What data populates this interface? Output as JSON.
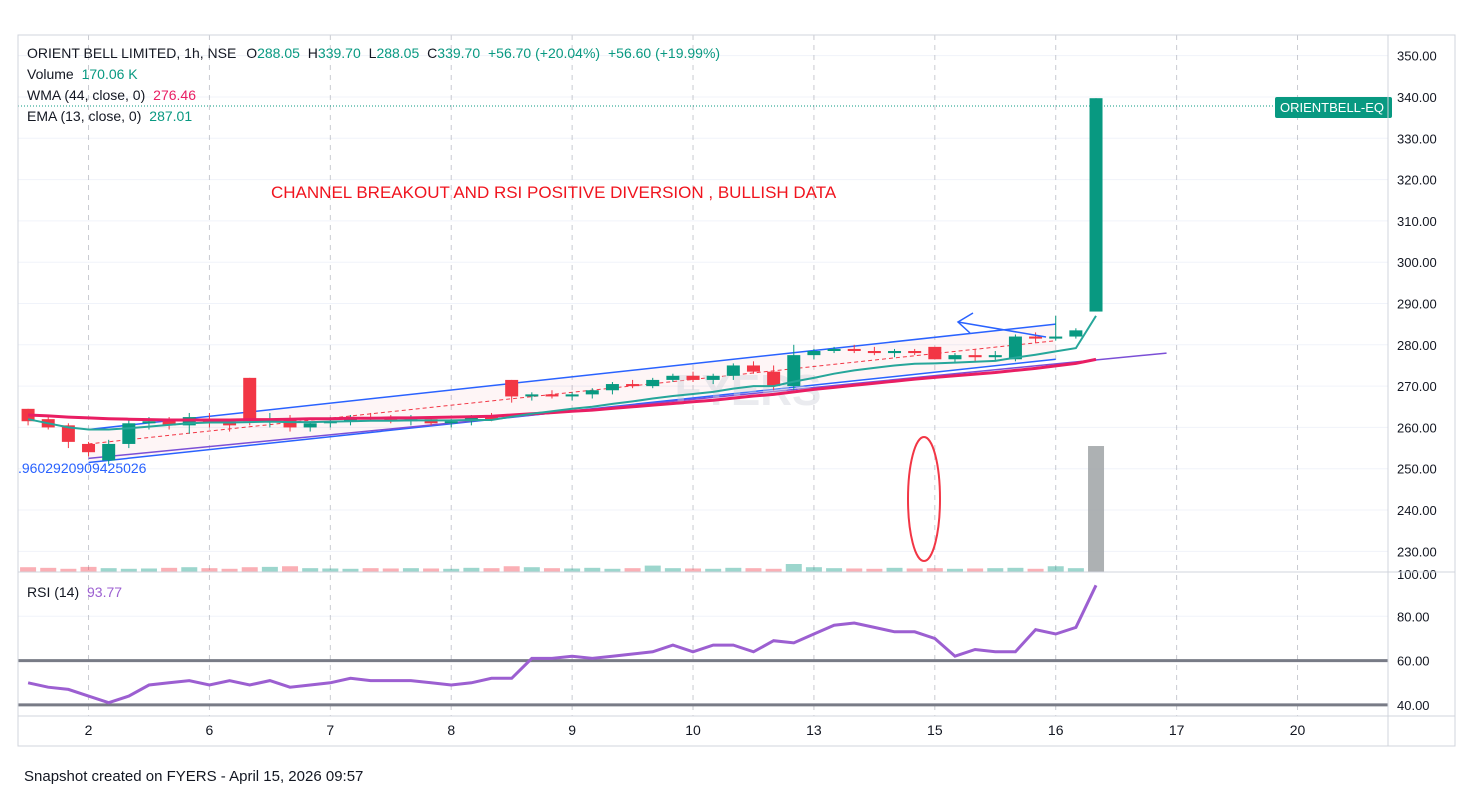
{
  "header": {
    "symbol_line": "ORIENT BELL LIMITED, 1h, NSE",
    "o_label": "O",
    "o_value": "288.05",
    "h_label": "H",
    "h_value": "339.70",
    "l_label": "L",
    "l_value": "288.05",
    "c_label": "C",
    "c_value": "339.70",
    "change": "+56.70 (+20.04%)",
    "change2": "+56.60 (+19.99%)"
  },
  "indicators": {
    "volume_label": "Volume",
    "volume_value": "170.06 K",
    "wma_label": "WMA (44, close, 0)",
    "wma_value": "276.46",
    "ema_label": "EMA (13, close, 0)",
    "ema_value": "287.01",
    "rsi_label": "RSI (14)",
    "rsi_value": "93.77"
  },
  "annotation_text": "CHANNEL BREAKOUT AND RSI POSITIVE DIVERSION , BULLISH DATA",
  "fib_label": ".9602920909425026",
  "price_tag": {
    "symbol": "ORIENTBELL-EQ",
    "price": "339.70"
  },
  "footer": "Snapshot created on FYERS - April 15, 2026 09:57",
  "watermark": "FYERS",
  "colors": {
    "up": "#089981",
    "down": "#f23645",
    "wma": "#e91e63",
    "ema": "#26a69a",
    "rsi": "#9c5fd1",
    "channel": "#2962ff",
    "annotation": "#f0141e",
    "tag_bg": "#089981"
  },
  "chart_data": {
    "type": "candlestick",
    "price_axis": {
      "ticks": [
        "350.00",
        "340.00",
        "330.00",
        "320.00",
        "310.00",
        "300.00",
        "290.00",
        "280.00",
        "270.00",
        "260.00",
        "250.00",
        "240.00",
        "230.00"
      ],
      "range": [
        225,
        355
      ]
    },
    "volume_axis_label": "100.00",
    "rsi_axis": {
      "ticks": [
        "80.00",
        "60.00",
        "40.00"
      ],
      "range": [
        35,
        100
      ],
      "levels": [
        60,
        40
      ]
    },
    "x_ticks": [
      "2",
      "6",
      "7",
      "8",
      "9",
      "10",
      "13",
      "15",
      "16",
      "17",
      "20"
    ],
    "x_tick_slot": [
      3,
      9,
      15,
      21,
      27,
      33,
      39,
      45,
      51,
      57,
      63
    ],
    "candles": [
      [
        264.5,
        264.5,
        260.5,
        261.5
      ],
      [
        262,
        263,
        259.5,
        260
      ],
      [
        260.5,
        261,
        255,
        256.5
      ],
      [
        256,
        256.5,
        253,
        254
      ],
      [
        252,
        257,
        251,
        256
      ],
      [
        256,
        262,
        255,
        261
      ],
      [
        261,
        262.5,
        259.5,
        261.5
      ],
      [
        261.5,
        262.5,
        259.5,
        260.5
      ],
      [
        260.5,
        263.5,
        258.5,
        262.5
      ],
      [
        262,
        263.5,
        260,
        261
      ],
      [
        261.5,
        262,
        259,
        260.5
      ],
      [
        272,
        272,
        260.5,
        261.5
      ],
      [
        261.5,
        263.5,
        260,
        262
      ],
      [
        262,
        263,
        259,
        260
      ],
      [
        260,
        261.5,
        259,
        261
      ],
      [
        261,
        262.5,
        260,
        261.5
      ],
      [
        261.5,
        263,
        260.5,
        262.5
      ],
      [
        262.5,
        263.5,
        261.5,
        262
      ],
      [
        262,
        263,
        261,
        261.5
      ],
      [
        261.5,
        263,
        260.5,
        262
      ],
      [
        262,
        262.5,
        260.5,
        261
      ],
      [
        261,
        262,
        260,
        261.5
      ],
      [
        261.5,
        263,
        260.5,
        262.5
      ],
      [
        262.5,
        263.5,
        261.5,
        262
      ],
      [
        271.5,
        271.5,
        266,
        267.5
      ],
      [
        267.5,
        268.5,
        266.5,
        268
      ],
      [
        268,
        269,
        267,
        267.5
      ],
      [
        267.5,
        268.5,
        266.5,
        268
      ],
      [
        268,
        269.5,
        267,
        269
      ],
      [
        269,
        271,
        268,
        270.5
      ],
      [
        270.5,
        271.5,
        269.5,
        270
      ],
      [
        270,
        272,
        269.5,
        271.5
      ],
      [
        271.5,
        273,
        271,
        272.5
      ],
      [
        272.5,
        273.5,
        271,
        271.5
      ],
      [
        271.5,
        273,
        270.5,
        272.5
      ],
      [
        272.5,
        275.5,
        271.5,
        275
      ],
      [
        275,
        276,
        273,
        273.5
      ],
      [
        273.5,
        275,
        269,
        270
      ],
      [
        270,
        280,
        269,
        277.5
      ],
      [
        277.5,
        279,
        276.5,
        278.5
      ],
      [
        278.5,
        279.5,
        278,
        279
      ],
      [
        279,
        280,
        278,
        278.5
      ],
      [
        278.5,
        279.5,
        277.5,
        278
      ],
      [
        278,
        279,
        277,
        278.5
      ],
      [
        278.5,
        279,
        277.5,
        278
      ],
      [
        279.5,
        279.5,
        277,
        276.5
      ],
      [
        276.5,
        278,
        275.5,
        277.5
      ],
      [
        277.5,
        279,
        276,
        277
      ],
      [
        277,
        278.5,
        276,
        277.5
      ],
      [
        276.5,
        282.5,
        276,
        282
      ],
      [
        282,
        283,
        280.5,
        281.5
      ],
      [
        281.5,
        287,
        281,
        282
      ],
      [
        282,
        284,
        281.5,
        283.5
      ],
      [
        288.05,
        339.7,
        288.05,
        339.7
      ]
    ],
    "volumes": [
      1.5,
      1.3,
      1.0,
      1.6,
      1.2,
      1.0,
      1.1,
      1.3,
      1.5,
      1.2,
      1.0,
      1.5,
      1.6,
      1.8,
      1.2,
      1.1,
      1.0,
      1.2,
      1.1,
      1.2,
      1.1,
      1.0,
      1.3,
      1.2,
      1.8,
      1.5,
      1.2,
      1.1,
      1.3,
      1.0,
      1.2,
      2.0,
      1.2,
      1.1,
      1.0,
      1.3,
      1.2,
      1.0,
      2.5,
      1.5,
      1.2,
      1.1,
      1.0,
      1.3,
      1.1,
      1.2,
      1.0,
      1.1,
      1.2,
      1.3,
      1.0,
      1.8,
      1.2,
      40
    ],
    "rsi": [
      50,
      48,
      47,
      44,
      41,
      44,
      49,
      50,
      51,
      49,
      51,
      49,
      51,
      48,
      49,
      50,
      52,
      51,
      51,
      51,
      50,
      49,
      50,
      52,
      52,
      61,
      61,
      62,
      61,
      62,
      63,
      64,
      67,
      64,
      67,
      67,
      64,
      69,
      68,
      72,
      76,
      77,
      75,
      73,
      73,
      70,
      62,
      65,
      64,
      64,
      74,
      72,
      75,
      94
    ],
    "wma": [
      263,
      262.8,
      262.5,
      262.3,
      262.1,
      262,
      261.9,
      261.8,
      261.8,
      261.8,
      261.8,
      261.9,
      261.9,
      262,
      262.1,
      262.1,
      262.2,
      262.2,
      262.3,
      262.3,
      262.4,
      262.5,
      262.6,
      262.7,
      263,
      263.3,
      263.6,
      263.9,
      264.2,
      264.6,
      265,
      265.4,
      265.8,
      266.2,
      266.6,
      267.1,
      267.6,
      268,
      268.6,
      269.2,
      269.7,
      270.2,
      270.7,
      271.2,
      271.7,
      272.1,
      272.5,
      272.9,
      273.3,
      273.8,
      274.3,
      274.9,
      275.5,
      276.46
    ],
    "ema": [
      262,
      261,
      260,
      259.5,
      259.5,
      259.8,
      260.2,
      260.6,
      261,
      261.2,
      261.2,
      261.3,
      261.4,
      261.3,
      261.3,
      261.4,
      261.5,
      261.6,
      261.6,
      261.7,
      261.7,
      261.7,
      261.8,
      261.8,
      262.6,
      263.3,
      263.9,
      264.5,
      265,
      265.7,
      266.3,
      267,
      267.6,
      268.1,
      268.6,
      269.4,
      270,
      270,
      271.1,
      272,
      273,
      273.8,
      274.4,
      275,
      275.4,
      275.5,
      275.7,
      275.9,
      276.1,
      276.9,
      277.6,
      278.4,
      279.2,
      287.01
    ]
  }
}
